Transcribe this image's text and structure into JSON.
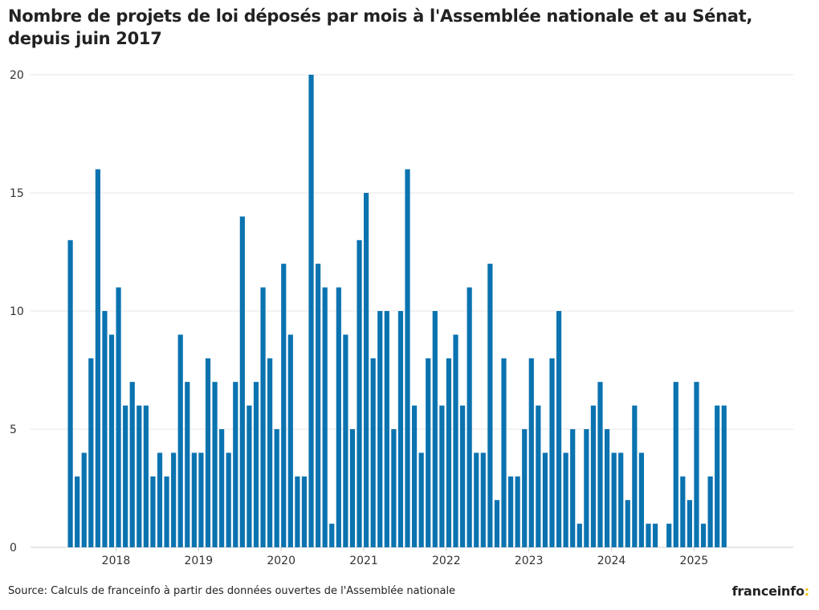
{
  "chart_data": {
    "type": "bar",
    "title": "Nombre de projets de loi déposés par mois à l'Assemblée nationale et au Sénat, depuis juin 2017",
    "xlabel": "",
    "ylabel": "",
    "start_month": "2017-06",
    "ylim": [
      0,
      20
    ],
    "y_ticks": [
      0,
      5,
      10,
      15,
      20
    ],
    "x_tick_labels": [
      "2018",
      "2019",
      "2020",
      "2021",
      "2022",
      "2023",
      "2024",
      "2025"
    ],
    "bar_color": "#0a73b0",
    "grid": true,
    "values": [
      13,
      3,
      4,
      8,
      16,
      10,
      9,
      11,
      6,
      7,
      6,
      6,
      3,
      4,
      3,
      4,
      9,
      7,
      4,
      4,
      8,
      7,
      5,
      4,
      7,
      14,
      6,
      7,
      11,
      8,
      5,
      12,
      9,
      3,
      3,
      20,
      12,
      11,
      1,
      11,
      9,
      5,
      13,
      15,
      8,
      10,
      10,
      5,
      10,
      16,
      6,
      4,
      8,
      10,
      6,
      8,
      9,
      6,
      11,
      4,
      4,
      12,
      2,
      8,
      3,
      3,
      5,
      8,
      6,
      4,
      8,
      10,
      4,
      5,
      1,
      5,
      6,
      7,
      5,
      4,
      4,
      2,
      6,
      4,
      1,
      1,
      0,
      1,
      7,
      3,
      2,
      7,
      1,
      3,
      6,
      6
    ]
  },
  "source": "Source: Calculs de franceinfo à partir des données ouvertes de l'Assemblée nationale",
  "brand": {
    "name": "franceinfo",
    "mark": ":"
  }
}
